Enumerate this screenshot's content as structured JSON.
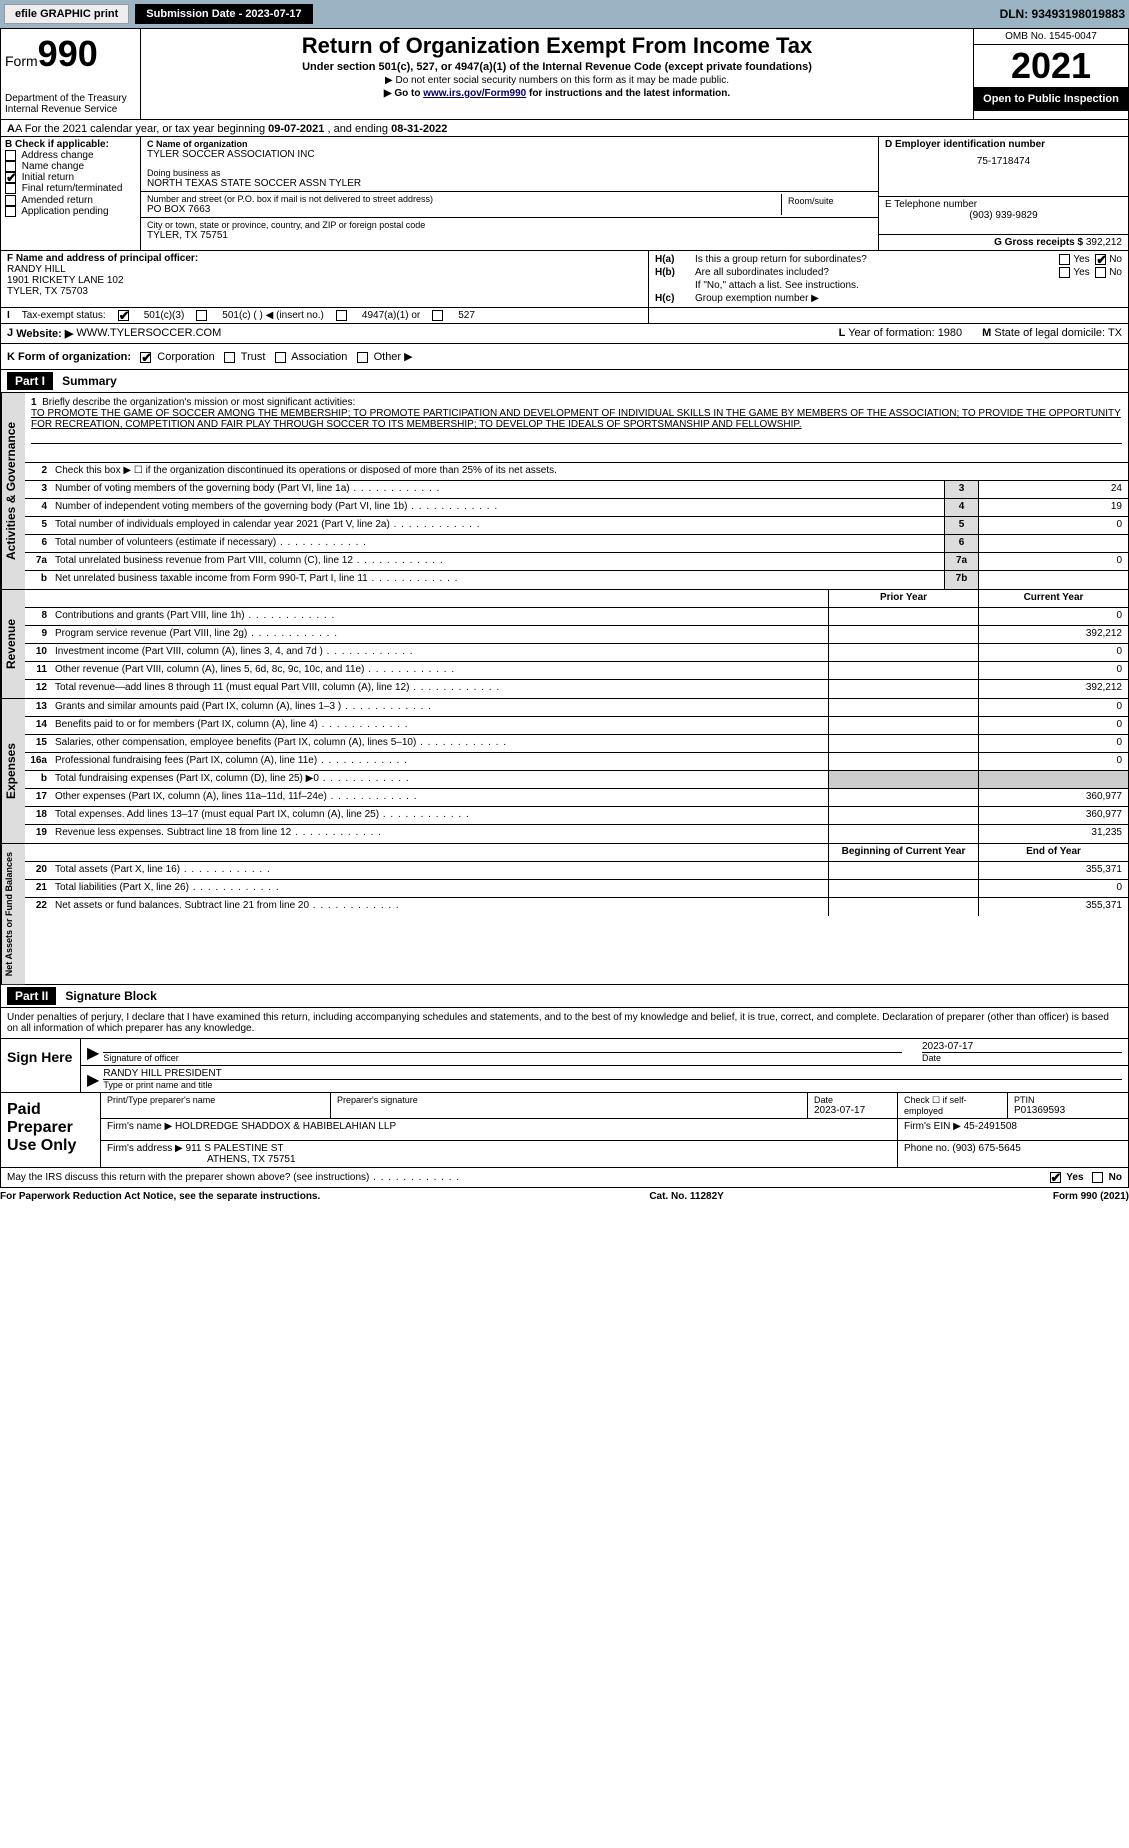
{
  "topbar": {
    "efile_label": "efile GRAPHIC print",
    "submission_label": "Submission Date - 2023-07-17",
    "dln_label": "DLN: 93493198019883"
  },
  "header": {
    "form_prefix": "Form",
    "form_number": "990",
    "dept": "Department of the Treasury",
    "irs": "Internal Revenue Service",
    "title": "Return of Organization Exempt From Income Tax",
    "subtitle": "Under section 501(c), 527, or 4947(a)(1) of the Internal Revenue Code (except private foundations)",
    "note1": "▶ Do not enter social security numbers on this form as it may be made public.",
    "note2_pre": "▶ Go to ",
    "note2_link": "www.irs.gov/Form990",
    "note2_post": " for instructions and the latest information.",
    "omb": "OMB No. 1545-0047",
    "year": "2021",
    "inspect": "Open to Public Inspection"
  },
  "row_a": {
    "text_pre": "A For the 2021 calendar year, or tax year beginning ",
    "begin": "09-07-2021",
    "mid": "    , and ending ",
    "end": "08-31-2022"
  },
  "section_b": {
    "header": "B Check if applicable:",
    "items": [
      "Address change",
      "Name change",
      "Initial return",
      "Final return/terminated",
      "Amended return",
      "Application pending"
    ],
    "checked_idx": 2
  },
  "section_c": {
    "label": "C Name of organization",
    "org": "TYLER SOCCER ASSOCIATION INC",
    "dba_label": "Doing business as",
    "dba": "NORTH TEXAS STATE SOCCER ASSN TYLER",
    "street_label": "Number and street (or P.O. box if mail is not delivered to street address)",
    "room_label": "Room/suite",
    "street": "PO BOX 7663",
    "city_label": "City or town, state or province, country, and ZIP or foreign postal code",
    "city": "TYLER, TX  75751"
  },
  "section_d": {
    "label": "D Employer identification number",
    "ein": "75-1718474",
    "e_label": "E Telephone number",
    "phone": "(903) 939-9829",
    "g_label": "G Gross receipts $",
    "gross": "392,212"
  },
  "section_f": {
    "label": "F  Name and address of principal officer:",
    "name": "RANDY HILL",
    "addr1": "1901 RICKETY LANE 102",
    "addr2": "TYLER, TX  75703"
  },
  "section_h": {
    "ha_label": "H(a)",
    "ha_text": "Is this a group return for subordinates?",
    "hb_label": "H(b)",
    "hb_text": "Are all subordinates included?",
    "hb_note": "If \"No,\" attach a list. See instructions.",
    "hc_label": "H(c)",
    "hc_text": "Group exemption number ▶",
    "yes": "Yes",
    "no": "No"
  },
  "section_i": {
    "label": "I",
    "text": "Tax-exempt status:",
    "opts": [
      "501(c)(3)",
      "501(c) (  ) ◀ (insert no.)",
      "4947(a)(1) or",
      "527"
    ]
  },
  "section_j": {
    "label": "J",
    "text": "Website: ▶",
    "value": "WWW.TYLERSOCCER.COM"
  },
  "section_k": {
    "label": "K Form of organization:",
    "opts": [
      "Corporation",
      "Trust",
      "Association",
      "Other ▶"
    ]
  },
  "section_lm": {
    "l_label": "L",
    "l_text": "Year of formation:",
    "l_val": "1980",
    "m_label": "M",
    "m_text": "State of legal domicile:",
    "m_val": "TX"
  },
  "parts": {
    "p1": "Part I",
    "p1_title": "Summary",
    "p2": "Part II",
    "p2_title": "Signature Block"
  },
  "summary": {
    "line1_label": "1",
    "line1_text": "Briefly describe the organization's mission or most significant activities:",
    "mission": "TO PROMOTE THE GAME OF SOCCER AMONG THE MEMBERSHIP; TO PROMOTE PARTICIPATION AND DEVELOPMENT OF INDIVIDUAL SKILLS IN THE GAME BY MEMBERS OF THE ASSOCIATION; TO PROVIDE THE OPPORTUNITY FOR RECREATION, COMPETITION AND FAIR PLAY THROUGH SOCCER TO ITS MEMBERSHIP; TO DEVELOP THE IDEALS OF SPORTSMANSHIP AND FELLOWSHIP.",
    "line2_text": "Check this box ▶ ☐  if the organization discontinued its operations or disposed of more than 25% of its net assets.",
    "rows_single": [
      {
        "n": "3",
        "t": "Number of voting members of the governing body (Part VI, line 1a)",
        "box": "3",
        "v": "24"
      },
      {
        "n": "4",
        "t": "Number of independent voting members of the governing body (Part VI, line 1b)",
        "box": "4",
        "v": "19"
      },
      {
        "n": "5",
        "t": "Total number of individuals employed in calendar year 2021 (Part V, line 2a)",
        "box": "5",
        "v": "0"
      },
      {
        "n": "6",
        "t": "Total number of volunteers (estimate if necessary)",
        "box": "6",
        "v": ""
      },
      {
        "n": "7a",
        "t": "Total unrelated business revenue from Part VIII, column (C), line 12",
        "box": "7a",
        "v": "0"
      },
      {
        "n": "b",
        "t": "Net unrelated business taxable income from Form 990-T, Part I, line 11",
        "box": "7b",
        "v": ""
      }
    ],
    "col_hdrs": {
      "prior": "Prior Year",
      "current": "Current Year"
    },
    "revenue_rows": [
      {
        "n": "8",
        "t": "Contributions and grants (Part VIII, line 1h)",
        "p": "",
        "c": "0"
      },
      {
        "n": "9",
        "t": "Program service revenue (Part VIII, line 2g)",
        "p": "",
        "c": "392,212"
      },
      {
        "n": "10",
        "t": "Investment income (Part VIII, column (A), lines 3, 4, and 7d )",
        "p": "",
        "c": "0"
      },
      {
        "n": "11",
        "t": "Other revenue (Part VIII, column (A), lines 5, 6d, 8c, 9c, 10c, and 11e)",
        "p": "",
        "c": "0"
      },
      {
        "n": "12",
        "t": "Total revenue—add lines 8 through 11 (must equal Part VIII, column (A), line 12)",
        "p": "",
        "c": "392,212"
      }
    ],
    "expense_rows": [
      {
        "n": "13",
        "t": "Grants and similar amounts paid (Part IX, column (A), lines 1–3 )",
        "p": "",
        "c": "0"
      },
      {
        "n": "14",
        "t": "Benefits paid to or for members (Part IX, column (A), line 4)",
        "p": "",
        "c": "0"
      },
      {
        "n": "15",
        "t": "Salaries, other compensation, employee benefits (Part IX, column (A), lines 5–10)",
        "p": "",
        "c": "0"
      },
      {
        "n": "16a",
        "t": "Professional fundraising fees (Part IX, column (A), line 11e)",
        "p": "",
        "c": "0"
      },
      {
        "n": "b",
        "t": "Total fundraising expenses (Part IX, column (D), line 25) ▶0",
        "p": "shaded",
        "c": "shaded"
      },
      {
        "n": "17",
        "t": "Other expenses (Part IX, column (A), lines 11a–11d, 11f–24e)",
        "p": "",
        "c": "360,977"
      },
      {
        "n": "18",
        "t": "Total expenses. Add lines 13–17 (must equal Part IX, column (A), line 25)",
        "p": "",
        "c": "360,977"
      },
      {
        "n": "19",
        "t": "Revenue less expenses. Subtract line 18 from line 12",
        "p": "",
        "c": "31,235"
      }
    ],
    "net_hdrs": {
      "begin": "Beginning of Current Year",
      "end": "End of Year"
    },
    "net_rows": [
      {
        "n": "20",
        "t": "Total assets (Part X, line 16)",
        "p": "",
        "c": "355,371"
      },
      {
        "n": "21",
        "t": "Total liabilities (Part X, line 26)",
        "p": "",
        "c": "0"
      },
      {
        "n": "22",
        "t": "Net assets or fund balances. Subtract line 21 from line 20",
        "p": "",
        "c": "355,371"
      }
    ],
    "tabs": {
      "gov": "Activities & Governance",
      "rev": "Revenue",
      "exp": "Expenses",
      "net": "Net Assets or Fund Balances"
    }
  },
  "signature": {
    "declare": "Under penalties of perjury, I declare that I have examined this return, including accompanying schedules and statements, and to the best of my knowledge and belief, it is true, correct, and complete. Declaration of preparer (other than officer) is based on all information of which preparer has any knowledge.",
    "sign_here": "Sign Here",
    "sig_officer": "Signature of officer",
    "date_label": "Date",
    "date_val": "2023-07-17",
    "name_title": "RANDY HILL  PRESIDENT",
    "name_title_label": "Type or print name and title"
  },
  "paid": {
    "label1": "Paid",
    "label2": "Preparer",
    "label3": "Use Only",
    "hdr_name": "Print/Type preparer's name",
    "hdr_sig": "Preparer's signature",
    "hdr_date": "Date",
    "date_val": "2023-07-17",
    "hdr_check": "Check ☐ if self-employed",
    "hdr_ptin": "PTIN",
    "ptin": "P01369593",
    "firm_name_label": "Firm's name    ▶",
    "firm_name": "HOLDREDGE SHADDOX & HABIBELAHIAN LLP",
    "firm_ein_label": "Firm's EIN ▶",
    "firm_ein": "45-2491508",
    "firm_addr_label": "Firm's address ▶",
    "firm_addr1": "911 S PALESTINE ST",
    "firm_addr2": "ATHENS, TX  75751",
    "phone_label": "Phone no.",
    "phone": "(903) 675-5645"
  },
  "footer": {
    "discuss": "May the IRS discuss this return with the preparer shown above? (see instructions)",
    "yes": "Yes",
    "no": "No",
    "paperwork": "For Paperwork Reduction Act Notice, see the separate instructions.",
    "cat": "Cat. No. 11282Y",
    "form": "Form 990 (2021)"
  }
}
